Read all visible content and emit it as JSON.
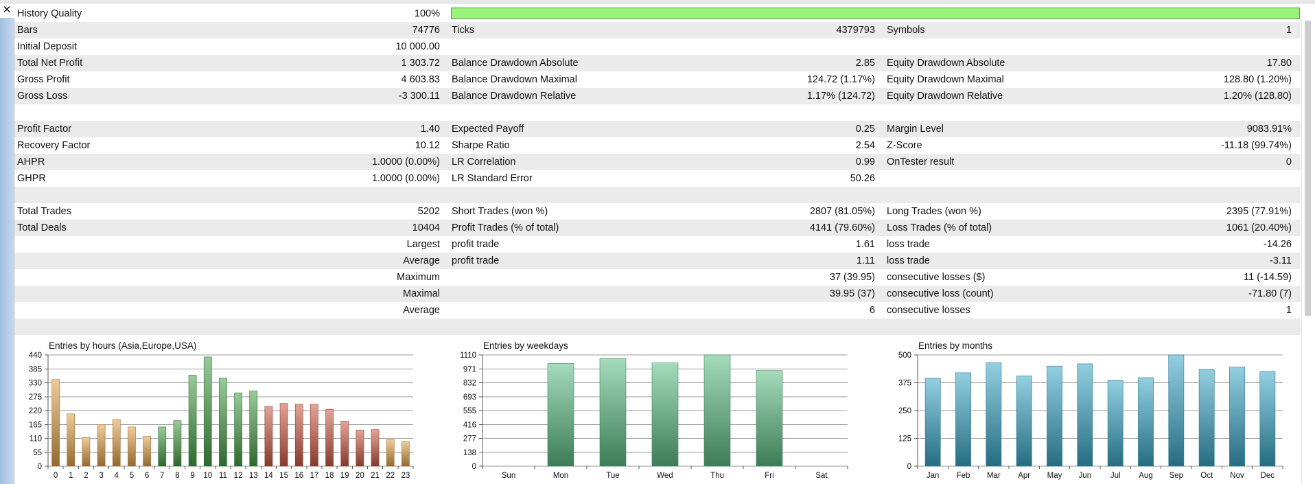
{
  "window": {
    "close_glyph": "✕"
  },
  "stats": {
    "history_quality": {
      "label": "History Quality",
      "value": "100%",
      "fill_percent": 100
    },
    "rows": [
      {
        "c": [
          "Bars",
          "74776",
          "Ticks",
          "4379793",
          "Symbols",
          "1"
        ]
      },
      {
        "c": [
          "Initial Deposit",
          "10 000.00",
          "",
          "",
          "",
          ""
        ]
      },
      {
        "c": [
          "Total Net Profit",
          "1 303.72",
          "Balance Drawdown Absolute",
          "2.85",
          "Equity Drawdown Absolute",
          "17.80"
        ]
      },
      {
        "c": [
          "Gross Profit",
          "4 603.83",
          "Balance Drawdown Maximal",
          "124.72 (1.17%)",
          "Equity Drawdown Maximal",
          "128.80 (1.20%)"
        ]
      },
      {
        "c": [
          "Gross Loss",
          "-3 300.11",
          "Balance Drawdown Relative",
          "1.17% (124.72)",
          "Equity Drawdown Relative",
          "1.20% (128.80)"
        ]
      },
      {
        "c": [
          "",
          "",
          "",
          "",
          "",
          ""
        ]
      },
      {
        "c": [
          "Profit Factor",
          "1.40",
          "Expected Payoff",
          "0.25",
          "Margin Level",
          "9083.91%"
        ]
      },
      {
        "c": [
          "Recovery Factor",
          "10.12",
          "Sharpe Ratio",
          "2.54",
          "Z-Score",
          "-11.18 (99.74%)"
        ]
      },
      {
        "c": [
          "AHPR",
          "1.0000 (0.00%)",
          "LR Correlation",
          "0.99",
          "OnTester result",
          "0"
        ]
      },
      {
        "c": [
          "GHPR",
          "1.0000 (0.00%)",
          "LR Standard Error",
          "50.26",
          "",
          ""
        ]
      },
      {
        "c": [
          "",
          "",
          "",
          "",
          "",
          ""
        ]
      },
      {
        "c": [
          "Total Trades",
          "5202",
          "Short Trades (won %)",
          "2807 (81.05%)",
          "Long Trades (won %)",
          "2395 (77.91%)"
        ]
      },
      {
        "c": [
          "Total Deals",
          "10404",
          "Profit Trades (% of total)",
          "4141 (79.60%)",
          "Loss Trades (% of total)",
          "1061 (20.40%)"
        ]
      },
      {
        "c": [
          "",
          "Largest",
          "profit trade",
          "1.61",
          "loss trade",
          "-14.26"
        ]
      },
      {
        "c": [
          "",
          "Average",
          "profit trade",
          "1.11",
          "loss trade",
          "-3.11"
        ]
      },
      {
        "c": [
          "",
          "Maximum",
          "",
          "37 (39.95)",
          "consecutive losses ($)",
          "11 (-14.59)"
        ]
      },
      {
        "c": [
          "",
          "Maximal",
          "",
          "39.95 (37)",
          "consecutive loss (count)",
          "-71.80 (7)"
        ]
      },
      {
        "c": [
          "",
          "Average",
          "",
          "6",
          "consecutive losses",
          "1"
        ]
      },
      {
        "c": [
          "",
          "",
          "",
          "",
          "",
          ""
        ]
      }
    ]
  },
  "chart_data": [
    {
      "type": "bar",
      "title": "Entries by hours (Asia,Europe,USA)",
      "categories": [
        "0",
        "1",
        "2",
        "3",
        "4",
        "5",
        "6",
        "7",
        "8",
        "9",
        "10",
        "11",
        "12",
        "13",
        "14",
        "15",
        "16",
        "17",
        "18",
        "19",
        "20",
        "21",
        "22",
        "23"
      ],
      "values": [
        343,
        207,
        113,
        165,
        185,
        155,
        118,
        155,
        180,
        360,
        432,
        348,
        290,
        298,
        237,
        248,
        245,
        245,
        225,
        178,
        143,
        145,
        105,
        97
      ],
      "bar_colors": [
        "#e2a24a",
        "#e2a24a",
        "#e2a24a",
        "#e2a24a",
        "#e2a24a",
        "#e2a24a",
        "#e2a24a",
        "#46a046",
        "#46a046",
        "#46a046",
        "#46a046",
        "#46a046",
        "#46a046",
        "#46a046",
        "#cd5a45",
        "#cd5a45",
        "#cd5a45",
        "#cd5a45",
        "#cd5a45",
        "#cd5a45",
        "#cd5a45",
        "#cd5a45",
        "#e2a24a",
        "#e2a24a"
      ],
      "yticks": [
        "0",
        "55",
        "110",
        "165",
        "220",
        "275",
        "330",
        "385",
        "440"
      ],
      "ylim": [
        0,
        440
      ],
      "grid": true
    },
    {
      "type": "bar",
      "title": "Entries by weekdays",
      "categories": [
        "Sun",
        "Mon",
        "Tue",
        "Wed",
        "Thu",
        "Fri",
        "Sat"
      ],
      "values": [
        0,
        1025,
        1075,
        1030,
        1110,
        955,
        0
      ],
      "bar_colors": [
        "#5cbf85",
        "#5cbf85",
        "#5cbf85",
        "#5cbf85",
        "#5cbf85",
        "#5cbf85",
        "#5cbf85"
      ],
      "yticks": [
        "0",
        "138",
        "277",
        "416",
        "555",
        "693",
        "832",
        "971",
        "1110"
      ],
      "ylim": [
        0,
        1110
      ],
      "grid": true
    },
    {
      "type": "bar",
      "title": "Entries by months",
      "categories": [
        "Jan",
        "Feb",
        "Mar",
        "Apr",
        "May",
        "Jun",
        "Jul",
        "Aug",
        "Sep",
        "Oct",
        "Nov",
        "Dec"
      ],
      "values": [
        395,
        420,
        465,
        405,
        450,
        460,
        385,
        398,
        500,
        435,
        445,
        425
      ],
      "bar_colors": [
        "#3aa7c8",
        "#3aa7c8",
        "#3aa7c8",
        "#3aa7c8",
        "#3aa7c8",
        "#3aa7c8",
        "#3aa7c8",
        "#3aa7c8",
        "#3aa7c8",
        "#3aa7c8",
        "#3aa7c8",
        "#3aa7c8"
      ],
      "yticks": [
        "0",
        "125",
        "250",
        "375",
        "500"
      ],
      "ylim": [
        0,
        500
      ],
      "grid": true
    }
  ]
}
